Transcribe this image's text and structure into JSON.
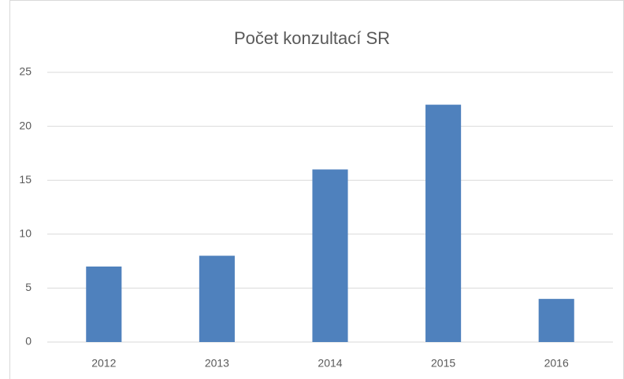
{
  "chart_data": {
    "type": "bar",
    "title": "Počet konzultací SR",
    "categories": [
      "2012",
      "2013",
      "2014",
      "2015",
      "2016"
    ],
    "values": [
      7,
      8,
      16,
      22,
      4
    ],
    "color": "#4f81bd",
    "ylim": [
      0,
      25
    ],
    "yticks": [
      0,
      5,
      10,
      15,
      20,
      25
    ],
    "grid": true
  }
}
